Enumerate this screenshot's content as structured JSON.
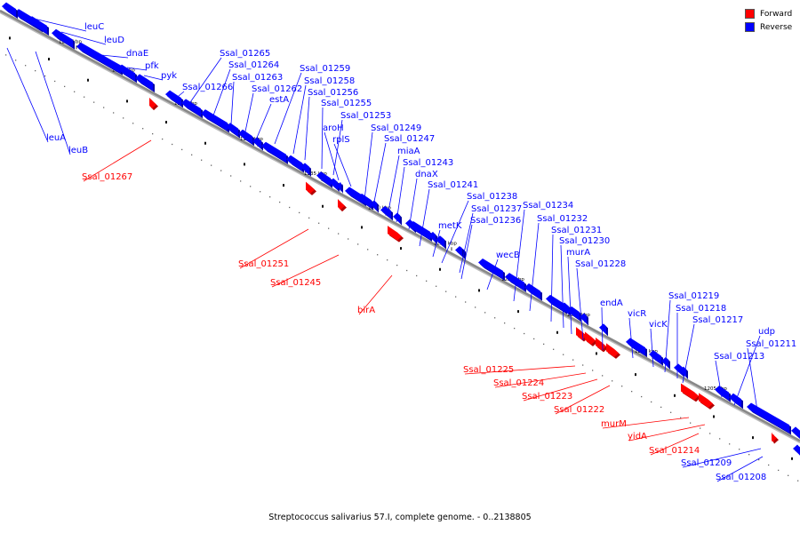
{
  "caption": "Streptococcus salivarius 57.I, complete genome. - 0..2138805",
  "legend": [
    {
      "label": "Forward",
      "color": "#ff0000"
    },
    {
      "label": "Reverse",
      "color": "#0000ff"
    }
  ],
  "colors": {
    "forward": "#ff0000",
    "reverse": "#0000ff",
    "backbone": "#888888"
  },
  "ticks": [
    "1255 kbp",
    "1250 kbp",
    "1245 kbp",
    "1240 kbp",
    "1235 kbp",
    "1230 kbp",
    "1225 kbp",
    "1220 kbp",
    "1215 kbp",
    "1210 kbp",
    "1205 kbp"
  ],
  "genes": [
    {
      "label": "leuC",
      "strand": "reverse"
    },
    {
      "label": "leuD",
      "strand": "reverse"
    },
    {
      "label": "leuA",
      "strand": "reverse"
    },
    {
      "label": "leuB",
      "strand": "reverse"
    },
    {
      "label": "dnaE",
      "strand": "reverse"
    },
    {
      "label": "pfk",
      "strand": "reverse"
    },
    {
      "label": "pyk",
      "strand": "reverse"
    },
    {
      "label": "Ssal_01267",
      "strand": "forward"
    },
    {
      "label": "Ssal_01266",
      "strand": "reverse"
    },
    {
      "label": "Ssal_01265",
      "strand": "reverse"
    },
    {
      "label": "Ssal_01264",
      "strand": "reverse"
    },
    {
      "label": "Ssal_01263",
      "strand": "reverse"
    },
    {
      "label": "Ssal_01262",
      "strand": "reverse"
    },
    {
      "label": "estA",
      "strand": "reverse"
    },
    {
      "label": "Ssal_01259",
      "strand": "reverse"
    },
    {
      "label": "Ssal_01258",
      "strand": "reverse"
    },
    {
      "label": "Ssal_01256",
      "strand": "reverse"
    },
    {
      "label": "Ssal_01255",
      "strand": "reverse"
    },
    {
      "label": "Ssal_01253",
      "strand": "reverse"
    },
    {
      "label": "aroH",
      "strand": "reverse"
    },
    {
      "label": "rplS",
      "strand": "reverse"
    },
    {
      "label": "Ssal_01251",
      "strand": "forward"
    },
    {
      "label": "Ssal_01249",
      "strand": "reverse"
    },
    {
      "label": "Ssal_01247",
      "strand": "reverse"
    },
    {
      "label": "Ssal_01245",
      "strand": "forward"
    },
    {
      "label": "miaA",
      "strand": "reverse"
    },
    {
      "label": "Ssal_01243",
      "strand": "reverse"
    },
    {
      "label": "dnaX",
      "strand": "reverse"
    },
    {
      "label": "birA",
      "strand": "forward"
    },
    {
      "label": "Ssal_01241",
      "strand": "reverse"
    },
    {
      "label": "metK",
      "strand": "reverse"
    },
    {
      "label": "Ssal_01238",
      "strand": "reverse"
    },
    {
      "label": "Ssal_01237",
      "strand": "reverse"
    },
    {
      "label": "Ssal_01236",
      "strand": "reverse"
    },
    {
      "label": "wecB",
      "strand": "reverse"
    },
    {
      "label": "Ssal_01234",
      "strand": "reverse"
    },
    {
      "label": "Ssal_01232",
      "strand": "reverse"
    },
    {
      "label": "Ssal_01231",
      "strand": "reverse"
    },
    {
      "label": "Ssal_01230",
      "strand": "reverse"
    },
    {
      "label": "murA",
      "strand": "reverse"
    },
    {
      "label": "Ssal_01228",
      "strand": "reverse"
    },
    {
      "label": "endA",
      "strand": "reverse"
    },
    {
      "label": "vicR",
      "strand": "reverse"
    },
    {
      "label": "vicK",
      "strand": "reverse"
    },
    {
      "label": "Ssal_01219",
      "strand": "reverse"
    },
    {
      "label": "Ssal_01218",
      "strand": "reverse"
    },
    {
      "label": "Ssal_01217",
      "strand": "reverse"
    },
    {
      "label": "Ssal_01225",
      "strand": "forward"
    },
    {
      "label": "Ssal_01224",
      "strand": "forward"
    },
    {
      "label": "Ssal_01223",
      "strand": "forward"
    },
    {
      "label": "Ssal_01222",
      "strand": "forward"
    },
    {
      "label": "Ssal_01213",
      "strand": "reverse"
    },
    {
      "label": "udp",
      "strand": "reverse"
    },
    {
      "label": "Ssal_01211",
      "strand": "reverse"
    },
    {
      "label": "murM",
      "strand": "forward"
    },
    {
      "label": "yidA",
      "strand": "forward"
    },
    {
      "label": "Ssal_01214",
      "strand": "forward"
    },
    {
      "label": "Ssal_01209",
      "strand": "reverse"
    },
    {
      "label": "Ssal_01208",
      "strand": "reverse"
    }
  ]
}
